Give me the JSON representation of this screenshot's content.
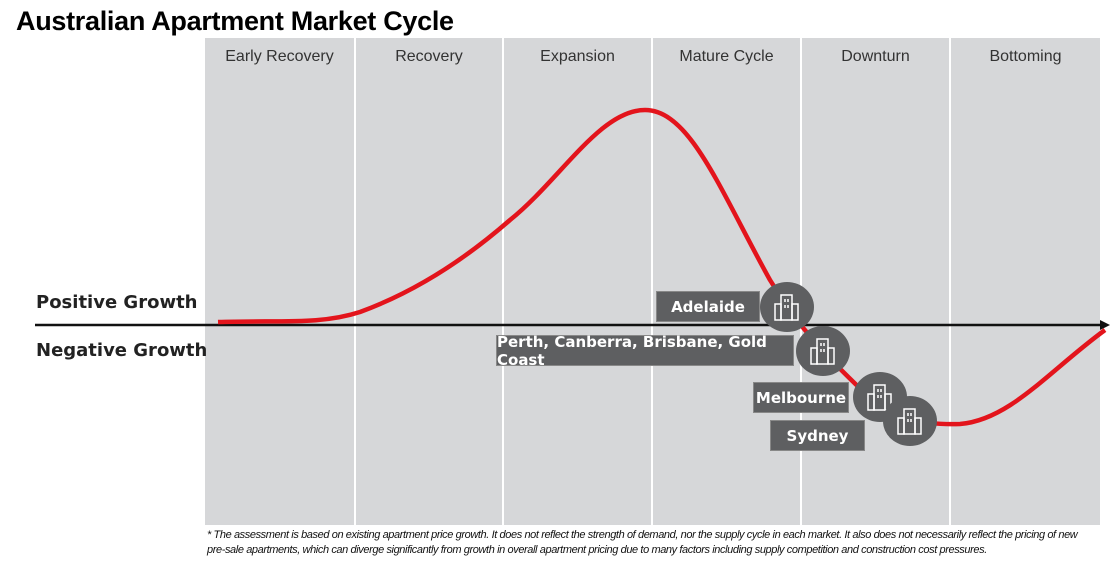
{
  "title": "Australian Apartment Market Cycle",
  "phases": [
    "Early Recovery",
    "Recovery",
    "Expansion",
    "Mature Cycle",
    "Downturn",
    "Bottoming"
  ],
  "axis_labels": {
    "positive": "Positive Growth",
    "negative": "Negative Growth"
  },
  "markets": [
    {
      "label": "Adelaide",
      "icon": "building-icon"
    },
    {
      "label": "Perth, Canberra, Brisbane, Gold Coast",
      "icon": "building-icon"
    },
    {
      "label": "Melbourne",
      "icon": "building-icon"
    },
    {
      "label": "Sydney",
      "icon": "building-icon"
    }
  ],
  "colors": {
    "curve": "#e3141c",
    "panel": "#d6d7d9",
    "label_bg": "#5e5f61"
  },
  "footnote": "* The assessment is based on existing apartment price growth. It does not reflect the strength of demand, nor the supply cycle in each market. It also does not necessarily reflect the pricing of new pre-sale apartments, which can diverge significantly from growth in overall apartment pricing due to many factors including supply competition and construction cost pressures."
}
